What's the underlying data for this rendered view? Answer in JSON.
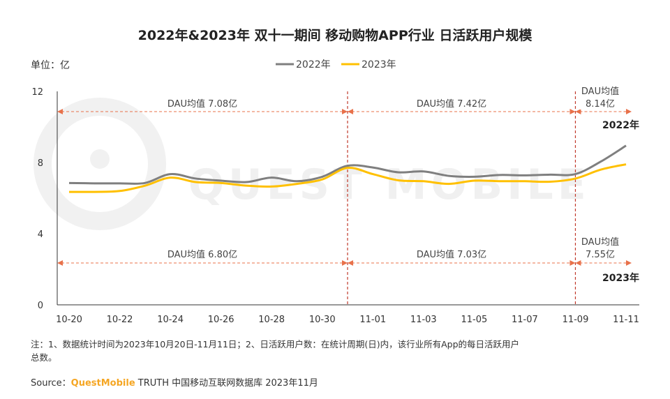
{
  "chart_data": {
    "type": "line",
    "title": "2022年&2023年 双十一期间 移动购物APP行业 日活跃用户规模",
    "ylabel": "单位：亿",
    "ylim": [
      0,
      12
    ],
    "y_ticks": [
      "0",
      "4",
      "8",
      "12"
    ],
    "x_ticks": [
      "10-20",
      "10-22",
      "10-24",
      "10-26",
      "10-28",
      "10-30",
      "11-01",
      "11-03",
      "11-05",
      "11-07",
      "11-09",
      "11-11"
    ],
    "x": [
      "10-20",
      "10-21",
      "10-22",
      "10-23",
      "10-24",
      "10-25",
      "10-26",
      "10-27",
      "10-28",
      "10-29",
      "10-30",
      "10-31",
      "11-01",
      "11-02",
      "11-03",
      "11-04",
      "11-05",
      "11-06",
      "11-07",
      "11-08",
      "11-09",
      "11-10",
      "11-11"
    ],
    "grid": false,
    "legend": "top-center",
    "series": [
      {
        "name": "2022年",
        "color": "#7f7f7f",
        "values": [
          6.85,
          6.83,
          6.83,
          6.85,
          7.35,
          7.1,
          6.98,
          6.9,
          7.15,
          6.95,
          7.2,
          7.82,
          7.72,
          7.45,
          7.5,
          7.25,
          7.2,
          7.3,
          7.28,
          7.32,
          7.35,
          8.05,
          8.95
        ]
      },
      {
        "name": "2023年",
        "color": "#ffc000",
        "values": [
          6.35,
          6.35,
          6.4,
          6.7,
          7.15,
          6.9,
          6.85,
          6.7,
          6.65,
          6.8,
          7.05,
          7.7,
          7.35,
          7.0,
          6.95,
          6.8,
          6.98,
          6.95,
          6.95,
          6.92,
          7.1,
          7.6,
          7.9
        ]
      }
    ],
    "periods": [
      {
        "from": "10-20",
        "to": "10-31"
      },
      {
        "from": "10-31",
        "to": "11-09"
      },
      {
        "from": "11-09",
        "to": "11-11"
      }
    ],
    "annotations": {
      "y2022": [
        "DAU均值 7.08亿",
        "DAU均值 7.42亿",
        "DAU均值",
        "8.14亿"
      ],
      "y2023": [
        "DAU均值 6.80亿",
        "DAU均值 7.03亿",
        "DAU均值",
        "7.55亿"
      ],
      "tag2022": "2022年",
      "tag2023": "2023年"
    }
  },
  "watermark": "QUEST MOBILE",
  "footnote": {
    "line1": "注：1、数据统计时间为2023年10月20日-11月11日；2、日活跃用户数：在统计周期(日)内，该行业所有App的每日活跃用户",
    "line2": "总数。"
  },
  "source": {
    "label": "Source：",
    "brand": "QuestMobile",
    "rest": " TRUTH 中国移动互联网数据库 2023年11月"
  },
  "colors": {
    "divider": "#c0392b",
    "avg_arrow": "#e8714a",
    "axis": "#333333"
  }
}
